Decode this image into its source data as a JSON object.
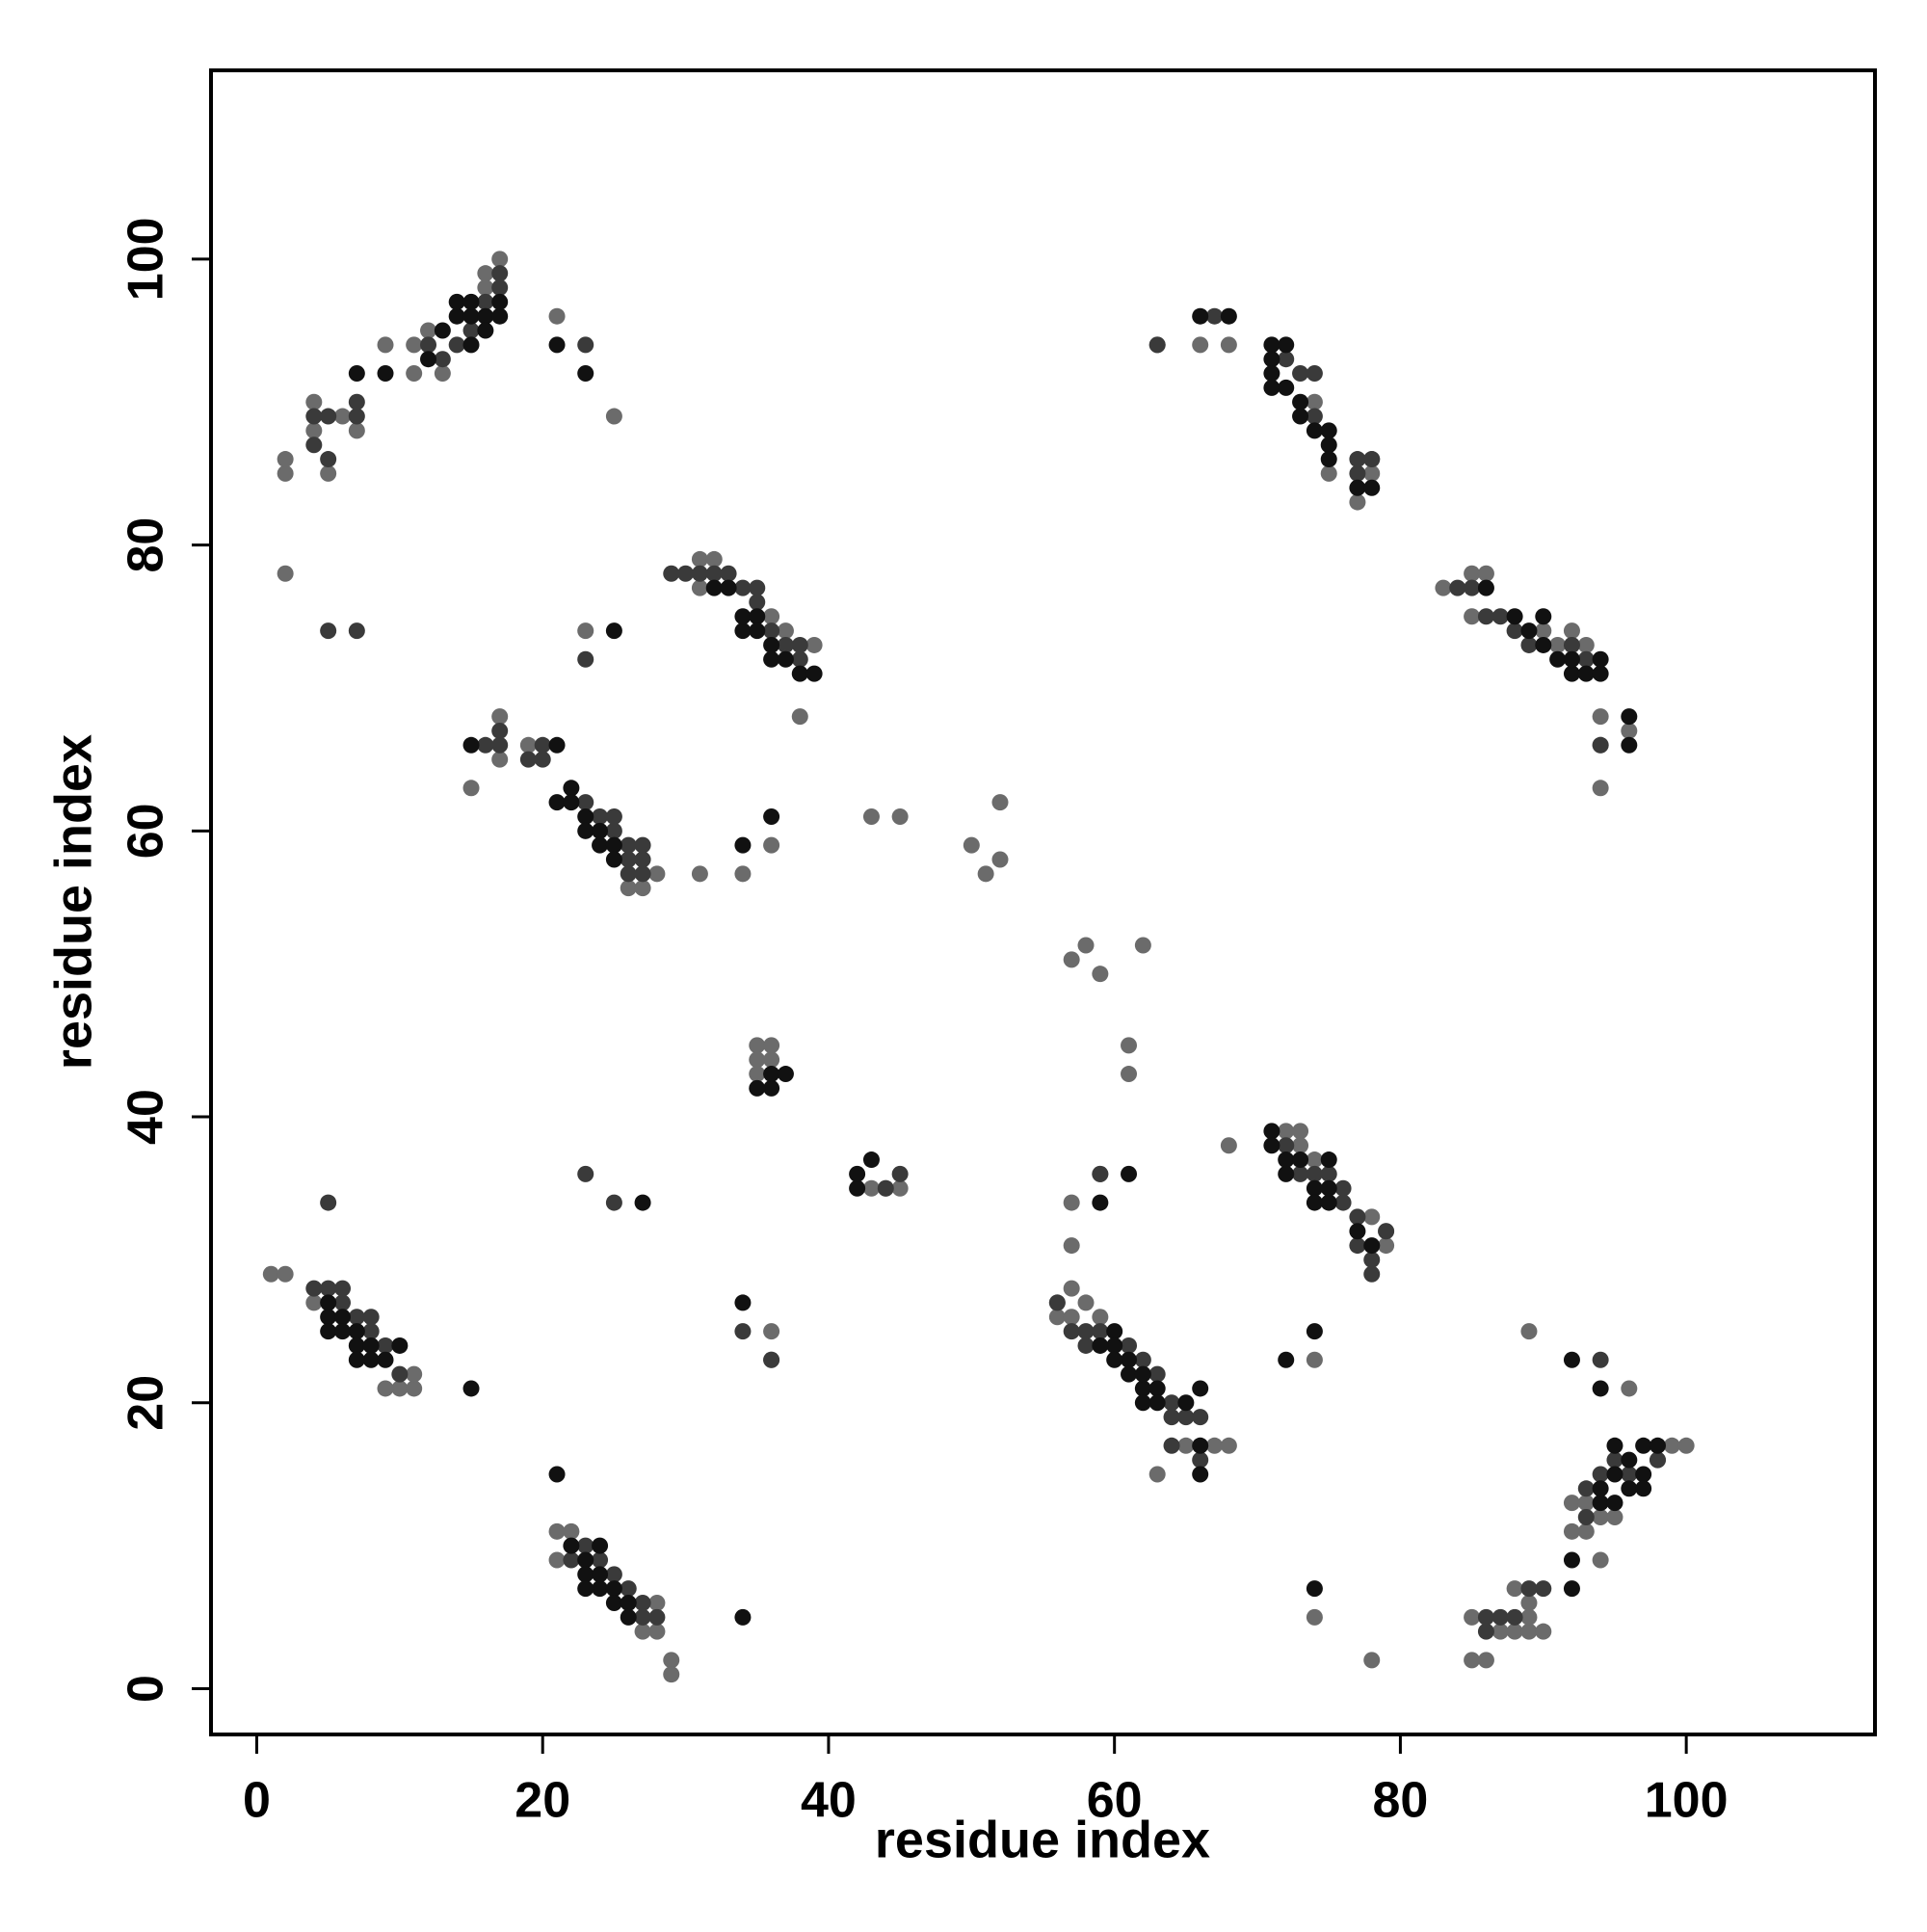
{
  "chart_data": {
    "type": "scatter",
    "xlabel": "residue index",
    "ylabel": "residue index",
    "xlim": [
      -3.2,
      113.2
    ],
    "ylim": [
      -3.2,
      113.2
    ],
    "xticks": [
      0,
      20,
      40,
      60,
      80,
      100
    ],
    "yticks": [
      0,
      20,
      40,
      60,
      80,
      100
    ],
    "series": [
      {
        "color": "#6b6b6b",
        "x": [
          1,
          2,
          4,
          10,
          11,
          11,
          9,
          2,
          2,
          2,
          4,
          4,
          5,
          6,
          7,
          9,
          11,
          11,
          12,
          13,
          16,
          16,
          17,
          21,
          25,
          23,
          15,
          17,
          17,
          19,
          26,
          27,
          28,
          31,
          34,
          38,
          31,
          32,
          31,
          36,
          36,
          37,
          39,
          43,
          45,
          50,
          51,
          52,
          52,
          57,
          58,
          59,
          62,
          61,
          61,
          35,
          35,
          35,
          36,
          36,
          43,
          44,
          45,
          57,
          57,
          59,
          68,
          56,
          56,
          57,
          57,
          58,
          59,
          63,
          67,
          68,
          65,
          72,
          73,
          73,
          74,
          78,
          79,
          79,
          74,
          74,
          78,
          85,
          85,
          86,
          87,
          88,
          89,
          89,
          88,
          89,
          90,
          89,
          92,
          92,
          93,
          93,
          94,
          94,
          95,
          96,
          98,
          99,
          100,
          21,
          22,
          21,
          28,
          28,
          27,
          29,
          29,
          36,
          36,
          63,
          66,
          68,
          74,
          75,
          77,
          78,
          78,
          83,
          85,
          86,
          85,
          90,
          91,
          92,
          93,
          94,
          94,
          94,
          96
        ],
        "values": [
          29,
          29,
          27,
          21,
          21,
          22,
          21,
          85,
          86,
          78,
          90,
          88,
          85,
          89,
          88,
          94,
          92,
          94,
          95,
          92,
          98,
          99,
          100,
          96,
          89,
          74,
          63,
          68,
          65,
          66,
          56,
          56,
          57,
          57,
          57,
          68,
          79,
          79,
          77,
          59,
          75,
          74,
          73,
          61,
          61,
          59,
          57,
          58,
          62,
          51,
          52,
          50,
          52,
          45,
          43,
          45,
          44,
          43,
          44,
          45,
          35,
          35,
          35,
          34,
          31,
          36,
          38,
          27,
          26,
          28,
          26,
          27,
          26,
          15,
          17,
          17,
          17,
          39,
          39,
          38,
          37,
          33,
          31,
          32,
          23,
          5,
          2,
          5,
          2,
          2,
          4,
          4,
          4,
          5,
          7,
          6,
          4,
          25,
          13,
          11,
          13,
          11,
          9,
          12,
          12,
          21,
          16,
          17,
          17,
          11,
          11,
          9,
          6,
          4,
          4,
          2,
          1,
          25,
          23,
          94,
          94,
          94,
          90,
          85,
          83,
          86,
          85,
          77,
          78,
          78,
          75,
          74,
          73,
          74,
          73,
          68,
          66,
          63,
          67
        ]
      },
      {
        "color": "#3a3a3a",
        "x": [
          4,
          5,
          6,
          7,
          8,
          9,
          10,
          8,
          6,
          4,
          4,
          5,
          5,
          7,
          7,
          12,
          13,
          14,
          16,
          17,
          17,
          15,
          23,
          23,
          5,
          7,
          16,
          17,
          17,
          19,
          20,
          20,
          23,
          24,
          25,
          25,
          26,
          26,
          27,
          27,
          26,
          27,
          29,
          30,
          31,
          32,
          33,
          34,
          35,
          35,
          36,
          37,
          38,
          38,
          24,
          25,
          26,
          27,
          27,
          28,
          22,
          23,
          25,
          23,
          5,
          36,
          34,
          44,
          45,
          63,
          67,
          72,
          73,
          74,
          74,
          77,
          77,
          78,
          84,
          85,
          86,
          87,
          88,
          89,
          92,
          93,
          94,
          56,
          57,
          58,
          58,
          59,
          61,
          62,
          63,
          64,
          65,
          64,
          64,
          66,
          66,
          59,
          72,
          73,
          74,
          75,
          76,
          76,
          77,
          77,
          78,
          78,
          79,
          90,
          89,
          86,
          86,
          87,
          88,
          93,
          93,
          94,
          95,
          96,
          98,
          94
        ],
        "values": [
          28,
          28,
          27,
          26,
          25,
          24,
          22,
          26,
          28,
          87,
          89,
          86,
          89,
          89,
          90,
          94,
          93,
          94,
          97,
          98,
          99,
          95,
          94,
          72,
          74,
          74,
          66,
          66,
          67,
          65,
          65,
          66,
          62,
          61,
          61,
          60,
          59,
          58,
          59,
          58,
          57,
          57,
          78,
          78,
          78,
          78,
          78,
          77,
          77,
          76,
          74,
          73,
          72,
          73,
          9,
          8,
          7,
          6,
          5,
          5,
          9,
          10,
          34,
          36,
          34,
          23,
          25,
          35,
          36,
          94,
          96,
          93,
          92,
          92,
          89,
          85,
          86,
          86,
          77,
          77,
          75,
          75,
          74,
          73,
          73,
          72,
          66,
          27,
          25,
          25,
          24,
          25,
          24,
          23,
          22,
          19,
          19,
          20,
          17,
          19,
          16,
          36,
          38,
          36,
          36,
          36,
          35,
          34,
          33,
          31,
          30,
          29,
          32,
          7,
          7,
          5,
          4,
          5,
          5,
          12,
          14,
          15,
          16,
          15,
          16,
          23
        ]
      },
      {
        "color": "#111111",
        "x": [
          5,
          5,
          6,
          7,
          7,
          8,
          8,
          9,
          10,
          7,
          5,
          6,
          15,
          21,
          22,
          23,
          23,
          24,
          24,
          25,
          25,
          26,
          26,
          24,
          23,
          34,
          34,
          13,
          14,
          14,
          15,
          15,
          15,
          16,
          17,
          17,
          16,
          7,
          9,
          12,
          21,
          23,
          25,
          15,
          21,
          21,
          22,
          22,
          23,
          23,
          24,
          24,
          25,
          25,
          34,
          34,
          35,
          35,
          36,
          36,
          37,
          38,
          39,
          32,
          33,
          36,
          34,
          36,
          36,
          37,
          35,
          42,
          43,
          42,
          71,
          72,
          71,
          71,
          71,
          72,
          73,
          73,
          74,
          75,
          75,
          75,
          77,
          78,
          66,
          68,
          86,
          88,
          89,
          90,
          90,
          91,
          92,
          93,
          94,
          94,
          92,
          96,
          96,
          71,
          72,
          72,
          73,
          74,
          74,
          75,
          75,
          75,
          77,
          78,
          71,
          60,
          60,
          61,
          60,
          61,
          62,
          62,
          63,
          63,
          62,
          59,
          66,
          66,
          65,
          66,
          61,
          59,
          74,
          72,
          92,
          94,
          92,
          92,
          94,
          94,
          95,
          95,
          96,
          96,
          97,
          97,
          98,
          95,
          97,
          74,
          27
        ],
        "values": [
          27,
          26,
          26,
          25,
          24,
          24,
          23,
          23,
          24,
          23,
          25,
          25,
          21,
          15,
          10,
          9,
          8,
          7,
          8,
          7,
          6,
          6,
          5,
          10,
          7,
          5,
          27,
          95,
          96,
          97,
          96,
          97,
          94,
          96,
          96,
          97,
          95,
          92,
          92,
          93,
          94,
          92,
          74,
          66,
          66,
          62,
          63,
          62,
          61,
          60,
          60,
          59,
          59,
          58,
          74,
          75,
          75,
          74,
          73,
          72,
          72,
          71,
          71,
          77,
          77,
          61,
          59,
          42,
          43,
          43,
          42,
          35,
          37,
          36,
          94,
          94,
          93,
          92,
          91,
          91,
          90,
          89,
          88,
          88,
          87,
          86,
          84,
          84,
          96,
          96,
          77,
          75,
          74,
          75,
          73,
          72,
          71,
          71,
          71,
          72,
          72,
          66,
          68,
          39,
          37,
          36,
          37,
          35,
          34,
          34,
          35,
          37,
          32,
          31,
          38,
          25,
          24,
          23,
          23,
          22,
          21,
          22,
          21,
          20,
          20,
          24,
          21,
          15,
          20,
          17,
          36,
          34,
          25,
          23,
          23,
          21,
          9,
          7,
          13,
          14,
          13,
          15,
          14,
          16,
          17,
          15,
          17,
          17,
          14,
          7,
          34
        ]
      }
    ]
  }
}
